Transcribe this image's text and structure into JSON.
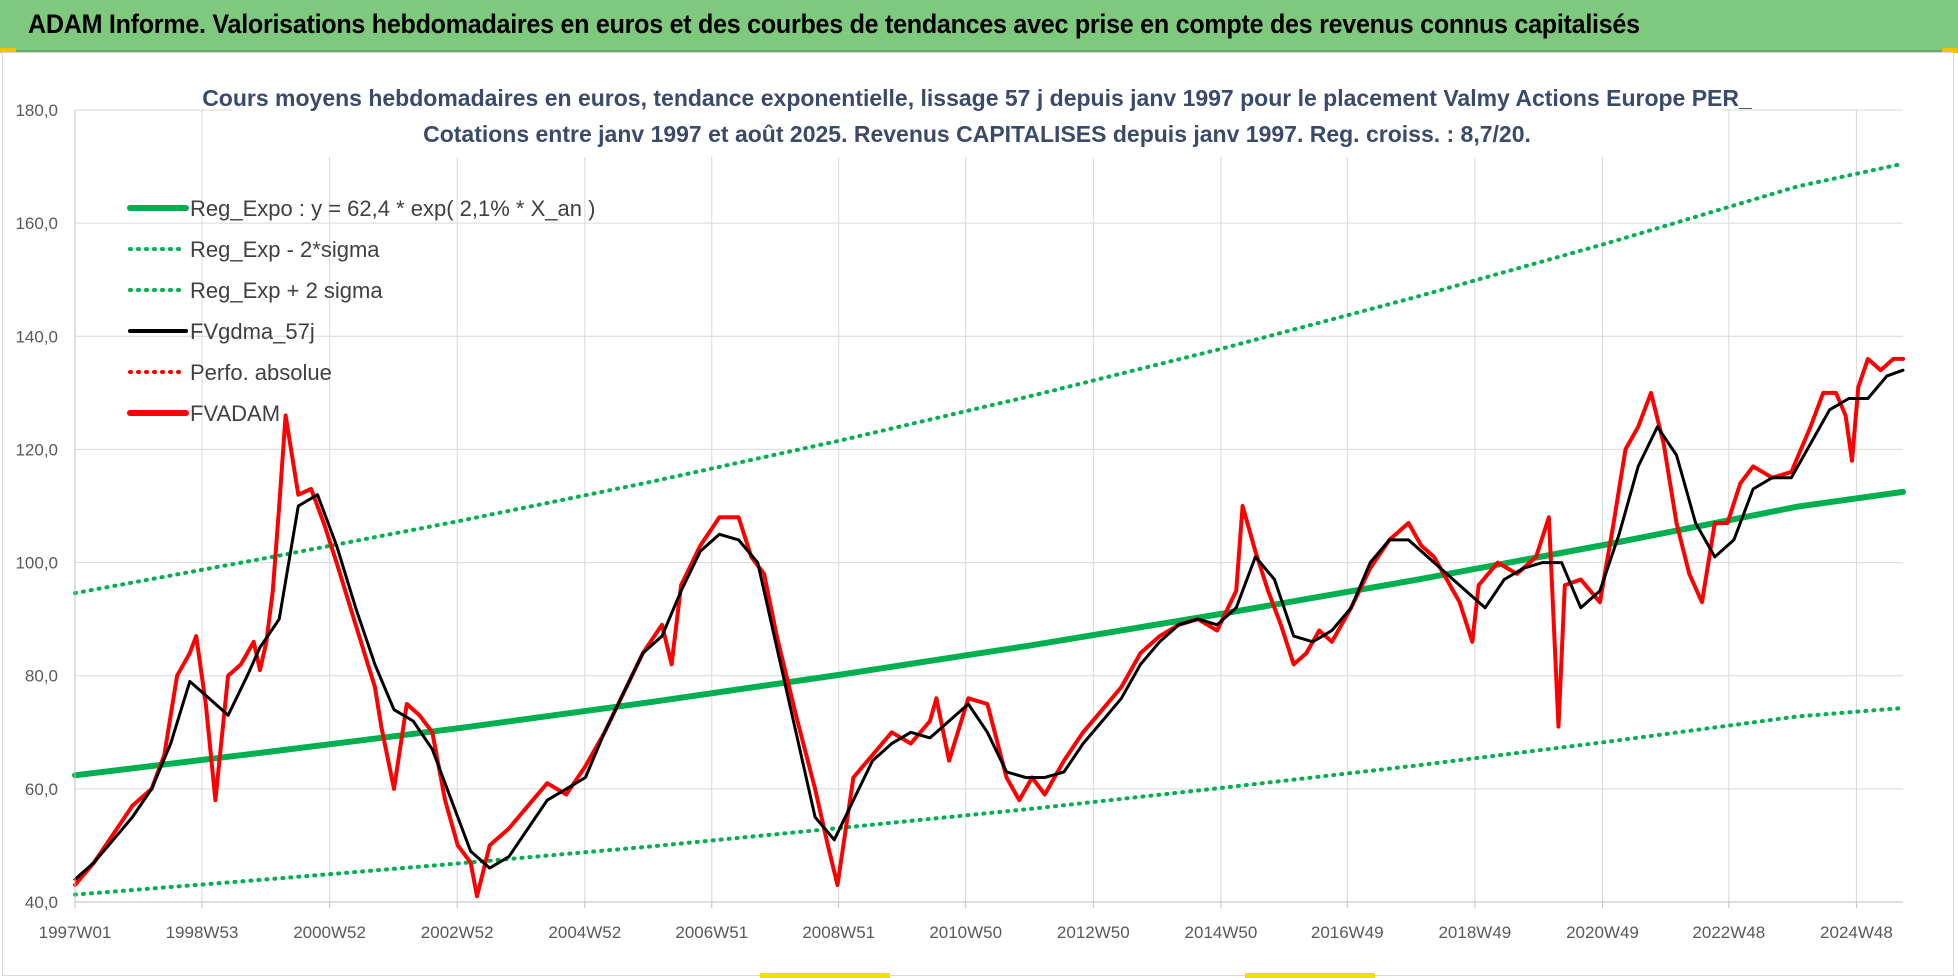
{
  "banner": {
    "title": "ADAM Informe. Valorisations hebdomadaires en euros et des courbes de tendances avec prise en compte des revenus connus capitalisés"
  },
  "colors": {
    "banner_bg": "#7ec97e",
    "reg_green": "#00b050",
    "fvgdma_black": "#000000",
    "fvadam_red": "#ff0000",
    "title_text": "#3a4a6b"
  },
  "chart_data": {
    "type": "line",
    "title": "Cours moyens hebdomadaires en euros, tendance exponentielle, lissage 57 j depuis janv 1997 pour le placement Valmy Actions Europe PER_",
    "subtitle": "Cotations entre janv 1997 et août 2025. Revenus CAPITALISES depuis janv 1997. Reg. croiss. : 8,7/20.",
    "xlabel": "",
    "ylabel": "",
    "xlim": [
      1997.0,
      2025.65
    ],
    "ylim": [
      40,
      180
    ],
    "y_ticks": [
      "40,0",
      "60,0",
      "80,0",
      "100,0",
      "120,0",
      "140,0",
      "160,0",
      "180,0"
    ],
    "x_ticks": [
      {
        "label": "1997W01",
        "x": 1997.0
      },
      {
        "label": "1998W53",
        "x": 1998.99
      },
      {
        "label": "2000W52",
        "x": 2000.99
      },
      {
        "label": "2002W52",
        "x": 2002.99
      },
      {
        "label": "2004W52",
        "x": 2004.99
      },
      {
        "label": "2006W51",
        "x": 2006.98
      },
      {
        "label": "2008W51",
        "x": 2008.97
      },
      {
        "label": "2010W50",
        "x": 2010.96
      },
      {
        "label": "2012W50",
        "x": 2012.96
      },
      {
        "label": "2014W50",
        "x": 2014.96
      },
      {
        "label": "2016W49",
        "x": 2016.94
      },
      {
        "label": "2018W49",
        "x": 2018.94
      },
      {
        "label": "2020W49",
        "x": 2020.94
      },
      {
        "label": "2022W48",
        "x": 2022.92
      },
      {
        "label": "2024W48",
        "x": 2024.92
      }
    ],
    "grid": true,
    "legend_position": "top-left",
    "legend": [
      {
        "label": "Reg_Expo : y = 62,4 * exp( 2,1% *  X_an )",
        "color": "#00b050",
        "style": "solid-thick"
      },
      {
        "label": "Reg_Exp - 2*sigma",
        "color": "#00b050",
        "style": "dotted"
      },
      {
        "label": "Reg_Exp + 2 sigma",
        "color": "#00b050",
        "style": "dotted"
      },
      {
        "label": "FVgdma_57j",
        "color": "#000000",
        "style": "solid"
      },
      {
        "label": "Perfo. absolue",
        "color": "#ff0000",
        "style": "dotted"
      },
      {
        "label": "FVADAM",
        "color": "#ff0000",
        "style": "solid-thick"
      }
    ],
    "series": [
      {
        "name": "Reg_Expo : y = 62,4 * exp( 2,1% *  X_an )",
        "x": [
          1997.0,
          2000.0,
          2003.0,
          2006.0,
          2009.0,
          2012.0,
          2015.0,
          2018.0,
          2021.0,
          2024.0,
          2025.65
        ],
        "values": [
          62.4,
          66.5,
          70.7,
          75.3,
          80.2,
          85.4,
          91.0,
          96.9,
          103.2,
          109.9,
          112.5
        ]
      },
      {
        "name": "Reg_Exp - 2*sigma",
        "x": [
          1997.0,
          2000.0,
          2003.0,
          2006.0,
          2009.0,
          2012.0,
          2015.0,
          2018.0,
          2021.0,
          2024.0,
          2025.65
        ],
        "values": [
          41.3,
          44.0,
          46.8,
          49.8,
          53.1,
          56.5,
          60.2,
          64.1,
          68.3,
          72.8,
          74.3
        ]
      },
      {
        "name": "Reg_Exp + 2 sigma",
        "x": [
          1997.0,
          2000.0,
          2003.0,
          2006.0,
          2009.0,
          2012.0,
          2015.0,
          2018.0,
          2021.0,
          2024.0,
          2025.65
        ],
        "values": [
          94.6,
          100.8,
          107.3,
          114.2,
          121.6,
          129.5,
          137.9,
          146.9,
          156.4,
          166.5,
          170.5
        ]
      },
      {
        "name": "FVgdma_57j",
        "x": [
          1997.0,
          1997.3,
          1997.6,
          1997.9,
          1998.2,
          1998.5,
          1998.8,
          1999.1,
          1999.4,
          1999.7,
          1999.9,
          2000.2,
          2000.5,
          2000.8,
          2001.1,
          2001.4,
          2001.7,
          2002.0,
          2002.3,
          2002.6,
          2002.9,
          2003.2,
          2003.5,
          2003.8,
          2004.1,
          2004.4,
          2004.7,
          2005.0,
          2005.3,
          2005.6,
          2005.9,
          2006.2,
          2006.5,
          2006.8,
          2007.1,
          2007.4,
          2007.7,
          2008.0,
          2008.3,
          2008.6,
          2008.9,
          2009.2,
          2009.5,
          2009.8,
          2010.1,
          2010.4,
          2010.7,
          2011.0,
          2011.3,
          2011.6,
          2011.9,
          2012.2,
          2012.5,
          2012.8,
          2013.1,
          2013.4,
          2013.7,
          2014.0,
          2014.3,
          2014.6,
          2014.9,
          2015.2,
          2015.5,
          2015.8,
          2016.1,
          2016.4,
          2016.7,
          2017.0,
          2017.3,
          2017.6,
          2017.9,
          2018.2,
          2018.5,
          2018.8,
          2019.1,
          2019.4,
          2019.7,
          2020.0,
          2020.3,
          2020.6,
          2020.9,
          2021.2,
          2021.5,
          2021.8,
          2022.1,
          2022.4,
          2022.7,
          2023.0,
          2023.3,
          2023.6,
          2023.9,
          2024.2,
          2024.5,
          2024.8,
          2025.1,
          2025.4,
          2025.65
        ],
        "values": [
          44.0,
          47.0,
          51.0,
          55.0,
          60.0,
          68.0,
          79.0,
          76.0,
          73.0,
          80.0,
          85.0,
          90.0,
          110.0,
          112.0,
          103.0,
          92.0,
          82.0,
          74.0,
          72.0,
          67.0,
          58.0,
          49.0,
          46.0,
          48.0,
          53.0,
          58.0,
          60.0,
          62.0,
          70.0,
          77.0,
          84.0,
          87.0,
          95.0,
          102.0,
          105.0,
          104.0,
          100.0,
          85.0,
          70.0,
          55.0,
          51.0,
          58.0,
          65.0,
          68.0,
          70.0,
          69.0,
          72.0,
          75.0,
          70.0,
          63.0,
          62.0,
          62.0,
          63.0,
          68.0,
          72.0,
          76.0,
          82.0,
          86.0,
          89.0,
          90.0,
          89.0,
          92.0,
          101.0,
          97.0,
          87.0,
          86.0,
          88.0,
          92.0,
          100.0,
          104.0,
          104.0,
          101.0,
          98.0,
          95.0,
          92.0,
          97.0,
          99.0,
          100.0,
          100.0,
          92.0,
          95.0,
          105.0,
          117.0,
          124.0,
          119.0,
          107.0,
          101.0,
          104.0,
          113.0,
          115.0,
          115.0,
          121.0,
          127.0,
          129.0,
          129.0,
          133.0,
          134.0
        ]
      },
      {
        "name": "FVADAM",
        "x": [
          1997.0,
          1997.3,
          1997.6,
          1997.9,
          1998.2,
          1998.4,
          1998.6,
          1998.8,
          1998.9,
          1999.05,
          1999.2,
          1999.4,
          1999.6,
          1999.8,
          1999.9,
          2000.0,
          2000.1,
          2000.2,
          2000.3,
          2000.5,
          2000.7,
          2000.9,
          2001.1,
          2001.4,
          2001.7,
          2001.8,
          2002.0,
          2002.2,
          2002.4,
          2002.6,
          2002.8,
          2003.0,
          2003.2,
          2003.3,
          2003.5,
          2003.8,
          2004.1,
          2004.4,
          2004.7,
          2005.0,
          2005.3,
          2005.6,
          2005.9,
          2006.2,
          2006.35,
          2006.5,
          2006.8,
          2007.1,
          2007.4,
          2007.6,
          2007.8,
          2008.0,
          2008.3,
          2008.6,
          2008.8,
          2008.95,
          2009.2,
          2009.5,
          2009.8,
          2010.1,
          2010.4,
          2010.5,
          2010.7,
          2011.0,
          2011.3,
          2011.6,
          2011.8,
          2012.0,
          2012.2,
          2012.5,
          2012.8,
          2013.1,
          2013.4,
          2013.7,
          2014.0,
          2014.3,
          2014.6,
          2014.9,
          2015.2,
          2015.3,
          2015.5,
          2015.7,
          2015.9,
          2016.1,
          2016.3,
          2016.5,
          2016.7,
          2017.0,
          2017.3,
          2017.6,
          2017.9,
          2018.1,
          2018.3,
          2018.5,
          2018.7,
          2018.9,
          2019.0,
          2019.3,
          2019.6,
          2019.9,
          2020.1,
          2020.25,
          2020.35,
          2020.6,
          2020.9,
          2021.1,
          2021.3,
          2021.5,
          2021.7,
          2021.9,
          2022.1,
          2022.3,
          2022.5,
          2022.7,
          2022.9,
          2023.1,
          2023.3,
          2023.6,
          2023.9,
          2024.2,
          2024.4,
          2024.6,
          2024.75,
          2024.85,
          2024.95,
          2025.1,
          2025.3,
          2025.5,
          2025.65
        ],
        "values": [
          43.0,
          47.0,
          52.0,
          57.0,
          60.0,
          66.0,
          80.0,
          84.0,
          87.0,
          75.0,
          58.0,
          80.0,
          82.0,
          86.0,
          81.0,
          86.0,
          95.0,
          110.0,
          126.0,
          112.0,
          113.0,
          107.0,
          100.0,
          89.0,
          78.0,
          71.0,
          60.0,
          75.0,
          73.0,
          70.0,
          58.0,
          50.0,
          47.0,
          41.0,
          50.0,
          53.0,
          57.0,
          61.0,
          59.0,
          64.0,
          70.0,
          77.0,
          84.0,
          89.0,
          82.0,
          96.0,
          103.0,
          108.0,
          108.0,
          101.0,
          98.0,
          87.0,
          73.0,
          60.0,
          50.0,
          43.0,
          62.0,
          66.0,
          70.0,
          68.0,
          72.0,
          76.0,
          65.0,
          76.0,
          75.0,
          62.0,
          58.0,
          62.0,
          59.0,
          65.0,
          70.0,
          74.0,
          78.0,
          84.0,
          87.0,
          89.0,
          90.0,
          88.0,
          95.0,
          110.0,
          102.0,
          95.0,
          89.0,
          82.0,
          84.0,
          88.0,
          86.0,
          92.0,
          99.0,
          104.0,
          107.0,
          103.0,
          101.0,
          97.0,
          93.0,
          86.0,
          96.0,
          100.0,
          98.0,
          101.0,
          108.0,
          71.0,
          96.0,
          97.0,
          93.0,
          106.0,
          120.0,
          124.0,
          130.0,
          121.0,
          107.0,
          98.0,
          93.0,
          107.0,
          107.0,
          114.0,
          117.0,
          115.0,
          116.0,
          124.0,
          130.0,
          130.0,
          126.0,
          118.0,
          131.0,
          136.0,
          134.0,
          136.0,
          136.0
        ]
      }
    ]
  }
}
